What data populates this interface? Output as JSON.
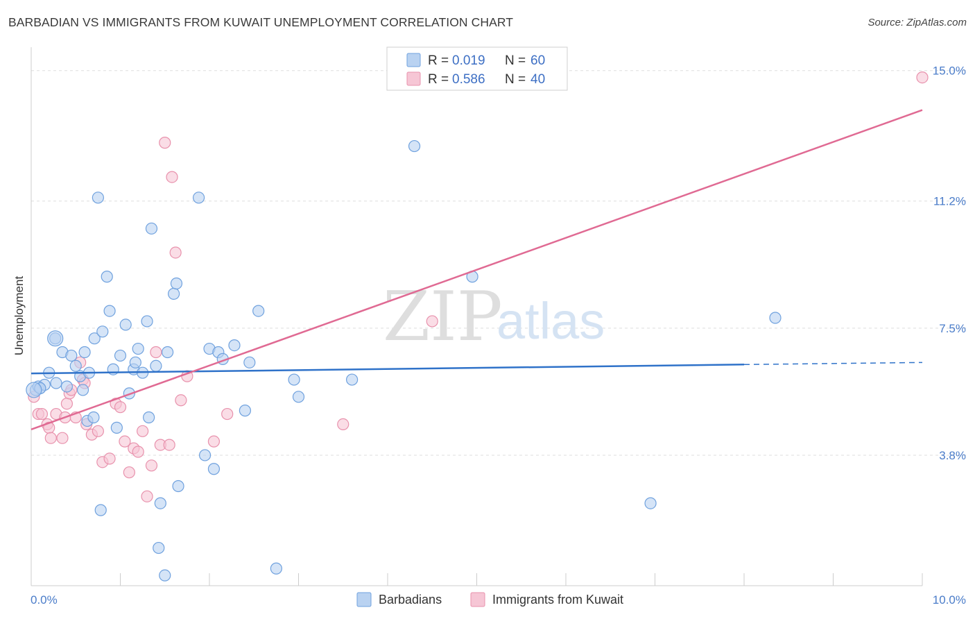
{
  "title": "BARBADIAN VS IMMIGRANTS FROM KUWAIT UNEMPLOYMENT CORRELATION CHART",
  "source": "Source: ZipAtlas.com",
  "watermark": {
    "zip": "ZIP",
    "atlas": "atlas"
  },
  "chart_data": {
    "type": "scatter",
    "ylabel": "Unemployment",
    "xlim": [
      0,
      10
    ],
    "ylim": [
      0,
      15.6
    ],
    "y_ticks": [
      {
        "value": 3.8,
        "label": "3.8%"
      },
      {
        "value": 7.5,
        "label": "7.5%"
      },
      {
        "value": 11.2,
        "label": "11.2%"
      },
      {
        "value": 15.0,
        "label": "15.0%"
      }
    ],
    "x_tick_labels": [
      {
        "value": 0,
        "label": "0.0%"
      },
      {
        "value": 10,
        "label": "10.0%"
      }
    ],
    "x_minor_ticks": [
      0,
      1,
      2,
      3,
      4,
      5,
      6,
      7,
      8,
      9,
      10
    ],
    "grid": "horizontal dashed",
    "legend_placement": "top-center",
    "series": [
      {
        "name": "Barbadians",
        "color": "#6fa1de",
        "fill": "#b9d2f1",
        "R": "0.019",
        "N": "60",
        "trend": {
          "x0": 0.0,
          "y0": 6.18,
          "x1": 8.0,
          "y1": 6.44,
          "dash_to_x": 10.0,
          "dash_to_y": 6.5
        },
        "points": [
          [
            0.05,
            5.7
          ],
          [
            0.08,
            5.8
          ],
          [
            0.1,
            5.75
          ],
          [
            0.15,
            5.85
          ],
          [
            0.2,
            6.2
          ],
          [
            0.28,
            5.9
          ],
          [
            0.27,
            7.2
          ],
          [
            0.35,
            6.8
          ],
          [
            0.4,
            5.8
          ],
          [
            0.45,
            6.7
          ],
          [
            0.5,
            6.4
          ],
          [
            0.55,
            6.1
          ],
          [
            0.58,
            5.7
          ],
          [
            0.6,
            6.8
          ],
          [
            0.63,
            4.8
          ],
          [
            0.65,
            6.2
          ],
          [
            0.7,
            4.9
          ],
          [
            0.71,
            7.2
          ],
          [
            0.75,
            11.3
          ],
          [
            0.78,
            2.2
          ],
          [
            0.8,
            7.4
          ],
          [
            0.85,
            9.0
          ],
          [
            0.88,
            8.0
          ],
          [
            0.92,
            6.3
          ],
          [
            0.96,
            4.6
          ],
          [
            1.0,
            6.7
          ],
          [
            1.06,
            7.6
          ],
          [
            1.1,
            5.6
          ],
          [
            1.15,
            6.3
          ],
          [
            1.17,
            6.5
          ],
          [
            1.2,
            6.9
          ],
          [
            1.25,
            6.2
          ],
          [
            1.3,
            7.7
          ],
          [
            1.32,
            4.9
          ],
          [
            1.35,
            10.4
          ],
          [
            1.4,
            6.4
          ],
          [
            1.43,
            1.1
          ],
          [
            1.45,
            2.4
          ],
          [
            1.5,
            0.3
          ],
          [
            1.53,
            6.8
          ],
          [
            1.6,
            8.5
          ],
          [
            1.63,
            8.8
          ],
          [
            1.65,
            2.9
          ],
          [
            1.88,
            11.3
          ],
          [
            1.95,
            3.8
          ],
          [
            2.0,
            6.9
          ],
          [
            2.05,
            3.4
          ],
          [
            2.1,
            6.8
          ],
          [
            2.15,
            6.6
          ],
          [
            2.28,
            7.0
          ],
          [
            2.4,
            5.1
          ],
          [
            2.45,
            6.5
          ],
          [
            2.55,
            8.0
          ],
          [
            3.0,
            5.5
          ],
          [
            2.75,
            0.5
          ],
          [
            2.95,
            6.0
          ],
          [
            3.6,
            6.0
          ],
          [
            4.3,
            12.8
          ],
          [
            4.95,
            9.0
          ],
          [
            6.95,
            2.4
          ],
          [
            8.35,
            7.8
          ],
          [
            0.1,
            5.75
          ]
        ],
        "large_points": [
          [
            0.03,
            5.7
          ],
          [
            0.27,
            7.2
          ]
        ]
      },
      {
        "name": "Immigrants from Kuwait",
        "color": "#e891ac",
        "fill": "#f6c6d5",
        "R": "0.586",
        "N": "40",
        "trend": {
          "x0": 0.0,
          "y0": 4.55,
          "x1": 10.0,
          "y1": 13.85
        },
        "points": [
          [
            0.03,
            5.5
          ],
          [
            0.08,
            5.0
          ],
          [
            0.12,
            5.0
          ],
          [
            0.18,
            4.7
          ],
          [
            0.2,
            4.6
          ],
          [
            0.22,
            4.3
          ],
          [
            0.28,
            5.0
          ],
          [
            0.35,
            4.3
          ],
          [
            0.38,
            4.9
          ],
          [
            0.4,
            5.3
          ],
          [
            0.43,
            5.6
          ],
          [
            0.45,
            5.7
          ],
          [
            0.5,
            4.9
          ],
          [
            0.55,
            6.5
          ],
          [
            0.58,
            6.0
          ],
          [
            0.6,
            5.9
          ],
          [
            0.62,
            4.7
          ],
          [
            0.68,
            4.4
          ],
          [
            0.75,
            4.5
          ],
          [
            0.8,
            3.6
          ],
          [
            0.88,
            3.7
          ],
          [
            0.95,
            5.3
          ],
          [
            1.0,
            5.2
          ],
          [
            1.05,
            4.2
          ],
          [
            1.1,
            3.3
          ],
          [
            1.15,
            4.0
          ],
          [
            1.2,
            3.9
          ],
          [
            1.25,
            4.5
          ],
          [
            1.3,
            2.6
          ],
          [
            1.35,
            3.5
          ],
          [
            1.4,
            6.8
          ],
          [
            1.45,
            4.1
          ],
          [
            1.5,
            12.9
          ],
          [
            1.55,
            4.1
          ],
          [
            1.58,
            11.9
          ],
          [
            1.62,
            9.7
          ],
          [
            1.68,
            5.4
          ],
          [
            1.75,
            6.1
          ],
          [
            2.05,
            4.2
          ],
          [
            2.2,
            5.0
          ],
          [
            3.5,
            4.7
          ],
          [
            4.5,
            7.7
          ],
          [
            10.0,
            14.8
          ]
        ]
      }
    ]
  },
  "legend": {
    "r_label": "R = ",
    "n_label": "N = "
  }
}
